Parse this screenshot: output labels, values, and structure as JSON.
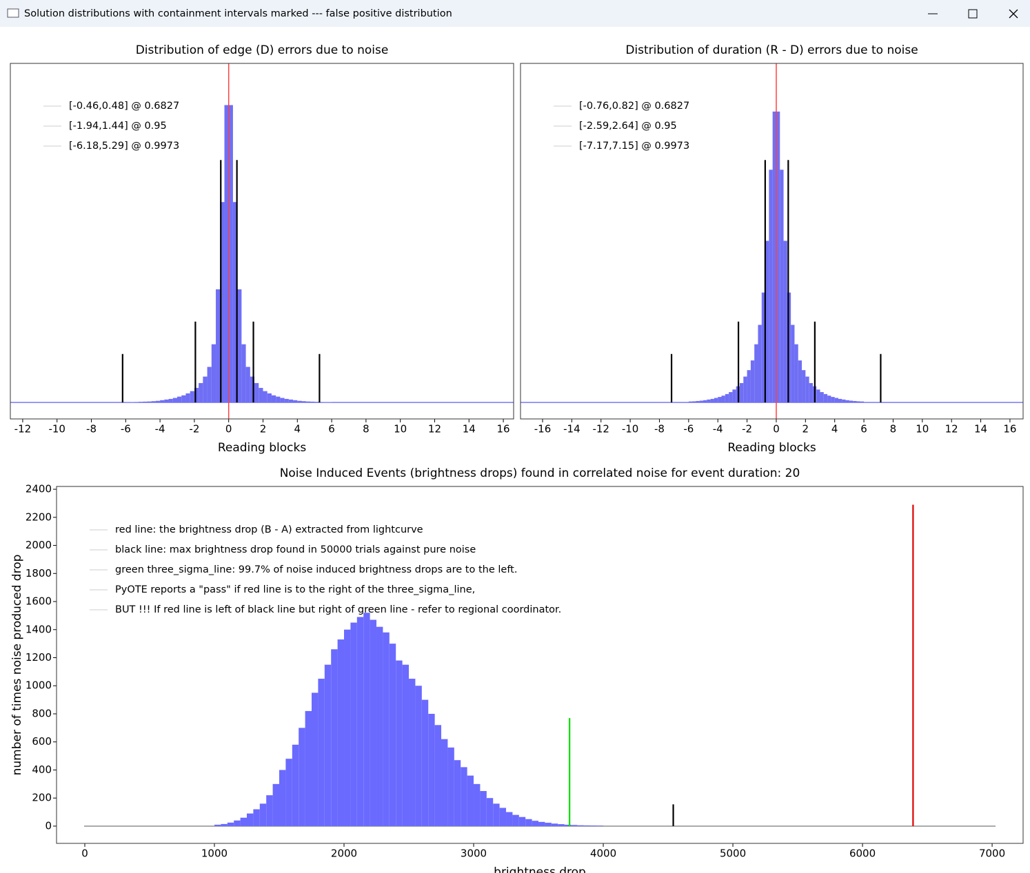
{
  "window": {
    "title": "Solution distributions with containment intervals marked --- false positive distribution"
  },
  "chart_data": [
    {
      "type": "histogram",
      "title": "Distribution of edge (D) errors due to noise",
      "xlabel": "Reading blocks",
      "xlim": [
        -12.72,
        16.6
      ],
      "ylim": [
        -5.1,
        104.9
      ],
      "xticks": [
        -12,
        -10,
        -8,
        -6,
        -4,
        -2,
        0,
        2,
        4,
        6,
        8,
        10,
        12,
        14,
        16
      ],
      "bins": [
        -6,
        -5.75,
        -5.5,
        -5.25,
        -5,
        -4.75,
        -4.5,
        -4.25,
        -4,
        -3.75,
        -3.5,
        -3.25,
        -3,
        -2.75,
        -2.5,
        -2.25,
        -2,
        -1.75,
        -1.5,
        -1.25,
        -1,
        -0.75,
        -0.5,
        -0.25,
        0,
        0.25,
        0.5,
        0.75,
        1,
        1.25,
        1.5,
        1.75,
        2,
        2.25,
        2.5,
        2.75,
        3,
        3.25,
        3.5,
        3.75,
        4,
        4.25,
        4.5,
        4.75,
        5,
        5.25,
        5.5,
        5.75,
        6
      ],
      "counts": [
        0.1,
        0.1,
        0.15,
        0.2,
        0.25,
        0.3,
        0.4,
        0.5,
        0.7,
        0.9,
        1.1,
        1.4,
        1.8,
        2.2,
        2.8,
        3.5,
        4.5,
        6,
        8,
        11,
        18,
        35,
        62,
        92,
        92,
        62,
        35,
        18,
        11,
        8,
        6,
        4.5,
        3.5,
        2.8,
        2.2,
        1.8,
        1.4,
        1.1,
        0.9,
        0.7,
        0.5,
        0.4,
        0.3,
        0.25,
        0.2,
        0.15,
        0.1,
        0.1
      ],
      "color": "#6f6ff5",
      "legend": [
        "[-0.46,0.48] @ 0.6827",
        "[-1.94,1.44] @ 0.95",
        "[-6.18,5.29] @ 0.9973"
      ],
      "lines": [
        {
          "x": -0.46,
          "height": 75,
          "color": "#000000"
        },
        {
          "x": 0.48,
          "height": 75,
          "color": "#000000"
        },
        {
          "x": -1.94,
          "height": 25,
          "color": "#000000"
        },
        {
          "x": 1.44,
          "height": 25,
          "color": "#000000"
        },
        {
          "x": -6.18,
          "height": 15,
          "color": "#000000"
        },
        {
          "x": 5.29,
          "height": 15,
          "color": "#000000"
        }
      ],
      "reference_x": 0,
      "reference_color": "#ff4040"
    },
    {
      "type": "histogram",
      "title": "Distribution of duration (R - D) errors due to noise",
      "xlabel": "Reading blocks",
      "xlim": [
        -17.51,
        16.9
      ],
      "ylim": [
        -5.1,
        104.9
      ],
      "xticks": [
        -16,
        -14,
        -12,
        -10,
        -8,
        -6,
        -4,
        -2,
        0,
        2,
        4,
        6,
        8,
        10,
        12,
        14,
        16
      ],
      "bins": [
        -6,
        -5.75,
        -5.5,
        -5.25,
        -5,
        -4.75,
        -4.5,
        -4.25,
        -4,
        -3.75,
        -3.5,
        -3.25,
        -3,
        -2.75,
        -2.5,
        -2.25,
        -2,
        -1.75,
        -1.5,
        -1.25,
        -1,
        -0.75,
        -0.5,
        -0.25,
        0,
        0.25,
        0.5,
        0.75,
        1,
        1.25,
        1.5,
        1.75,
        2,
        2.25,
        2.5,
        2.75,
        3,
        3.25,
        3.5,
        3.75,
        4,
        4.25,
        4.5,
        4.75,
        5,
        5.25,
        5.5,
        5.75,
        6
      ],
      "counts": [
        0.3,
        0.35,
        0.45,
        0.55,
        0.7,
        0.9,
        1.1,
        1.4,
        1.7,
        2.1,
        2.6,
        3.2,
        4,
        5,
        6,
        8,
        10,
        13,
        18,
        24,
        34,
        50,
        72,
        90,
        90,
        72,
        50,
        34,
        24,
        18,
        13,
        10,
        8,
        6,
        5,
        4,
        3.2,
        2.6,
        2.1,
        1.7,
        1.4,
        1.1,
        0.9,
        0.7,
        0.55,
        0.45,
        0.35,
        0.3
      ],
      "color": "#6f6ff5",
      "legend": [
        "[-0.76,0.82] @ 0.6827",
        "[-2.59,2.64] @ 0.95",
        "[-7.17,7.15] @ 0.9973"
      ],
      "lines": [
        {
          "x": -0.76,
          "height": 75,
          "color": "#000000"
        },
        {
          "x": 0.82,
          "height": 75,
          "color": "#000000"
        },
        {
          "x": -2.59,
          "height": 25,
          "color": "#000000"
        },
        {
          "x": 2.64,
          "height": 25,
          "color": "#000000"
        },
        {
          "x": -7.17,
          "height": 15,
          "color": "#000000"
        },
        {
          "x": 7.15,
          "height": 15,
          "color": "#000000"
        }
      ],
      "reference_x": 0,
      "reference_color": "#ff4040"
    },
    {
      "type": "histogram",
      "title": "Noise Induced Events (brightness drops) found in correlated noise for event duration: 20",
      "xlabel": "brightness drop",
      "ylabel": "number of times noise produced drop",
      "xlim": [
        -218,
        7239
      ],
      "ylim": [
        -123,
        2420
      ],
      "xticks": [
        0,
        1000,
        2000,
        3000,
        4000,
        5000,
        6000,
        7000
      ],
      "yticks": [
        0,
        200,
        400,
        600,
        800,
        1000,
        1200,
        1400,
        1600,
        1800,
        2000,
        2200,
        2400
      ],
      "bins": [
        1000,
        1050,
        1100,
        1150,
        1200,
        1250,
        1300,
        1350,
        1400,
        1450,
        1500,
        1550,
        1600,
        1650,
        1700,
        1750,
        1800,
        1850,
        1900,
        1950,
        2000,
        2050,
        2100,
        2150,
        2200,
        2250,
        2300,
        2350,
        2400,
        2450,
        2500,
        2550,
        2600,
        2650,
        2700,
        2750,
        2800,
        2850,
        2900,
        2950,
        3000,
        3050,
        3100,
        3150,
        3200,
        3250,
        3300,
        3350,
        3400,
        3450,
        3500,
        3550,
        3600,
        3650,
        3700,
        3750,
        3800,
        3850,
        3900,
        3950,
        4000
      ],
      "counts": [
        10,
        15,
        25,
        40,
        60,
        90,
        120,
        160,
        220,
        300,
        400,
        480,
        580,
        700,
        820,
        950,
        1050,
        1150,
        1260,
        1330,
        1400,
        1450,
        1490,
        1520,
        1470,
        1420,
        1380,
        1300,
        1180,
        1150,
        1050,
        1000,
        900,
        800,
        720,
        620,
        560,
        470,
        420,
        360,
        300,
        250,
        200,
        160,
        130,
        100,
        80,
        65,
        50,
        38,
        30,
        24,
        18,
        14,
        10,
        8,
        6,
        5,
        4,
        3
      ],
      "color": "#6a6aff",
      "legend": [
        "red line: the brightness drop (B - A) extracted from lightcurve",
        "black line: max brightness drop found in 50000 trials against pure noise",
        "green three_sigma_line: 99.7% of noise induced brightness drops are to the left.",
        "PyOTE reports a \"pass\" if red line is to the right of the three_sigma_line,",
        "BUT !!! If red line is left of black line but right of green line - refer to regional coordinator."
      ],
      "lines": [
        {
          "x": 3740,
          "height": 770,
          "color": "#00e000"
        },
        {
          "x": 4540,
          "height": 155,
          "color": "#000000"
        },
        {
          "x": 6390,
          "height": 2290,
          "color": "#dd0000"
        }
      ]
    }
  ]
}
